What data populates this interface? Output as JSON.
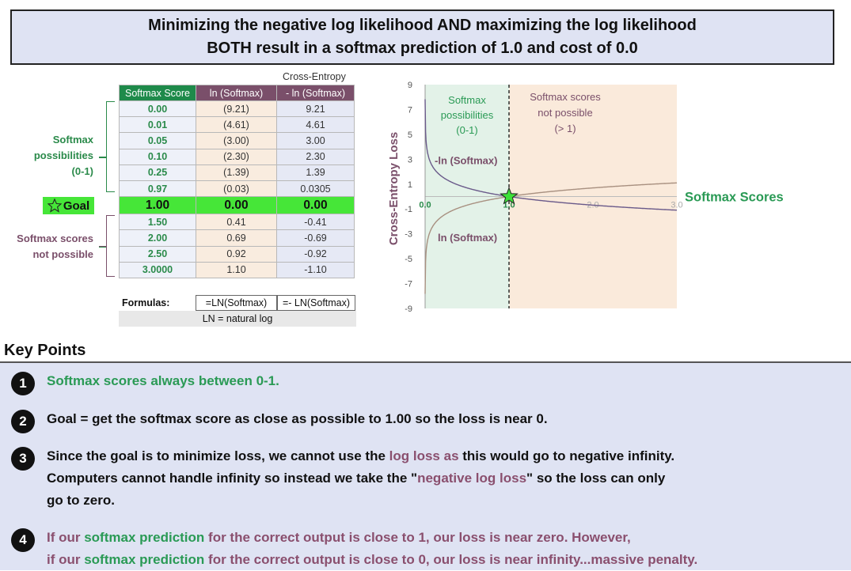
{
  "title": {
    "line1": "Minimizing the negative log likelihood AND maximizing the log likelihood",
    "line2": "BOTH result in a softmax prediction of 1.0 and cost of 0.0"
  },
  "table": {
    "cross_entropy_header": "Cross-Entropy",
    "headers": [
      "Softmax Score",
      "ln (Softmax)",
      "- ln (Softmax)"
    ],
    "rows": [
      [
        "0.00",
        "(9.21)",
        "9.21"
      ],
      [
        "0.01",
        "(4.61)",
        "4.61"
      ],
      [
        "0.05",
        "(3.00)",
        "3.00"
      ],
      [
        "0.10",
        "(2.30)",
        "2.30"
      ],
      [
        "0.25",
        "(1.39)",
        "1.39"
      ],
      [
        "0.97",
        "(0.03)",
        "0.0305"
      ],
      [
        "1.00",
        "0.00",
        "0.00"
      ],
      [
        "1.50",
        "0.41",
        "-0.41"
      ],
      [
        "2.00",
        "0.69",
        "-0.69"
      ],
      [
        "2.50",
        "0.92",
        "-0.92"
      ],
      [
        "3.0000",
        "1.10",
        "-1.10"
      ]
    ],
    "goal_row_index": 6
  },
  "side_labels": {
    "possible": [
      "Softmax",
      "possibilities",
      "(0-1)"
    ],
    "goal": "Goal",
    "not_possible": [
      "Softmax scores",
      "not possible"
    ]
  },
  "formulas": {
    "label": "Formulas:",
    "f1": "=LN(Softmax)",
    "f2": "=- LN(Softmax)",
    "note": "LN = natural log"
  },
  "chart_data": {
    "type": "line",
    "ylabel": "Cross-Entropy  Loss",
    "xlabel_right": "Softmax Scores",
    "x_ticks": [
      "0.0",
      "1.0",
      "2.0",
      "3.0"
    ],
    "y_ticks": [
      "9",
      "7",
      "5",
      "3",
      "1",
      "-1",
      "-3",
      "-5",
      "-7",
      "-9"
    ],
    "xlim": [
      0,
      3
    ],
    "ylim": [
      -9,
      9
    ],
    "series": [
      {
        "name": "-ln (Softmax)",
        "color": "#6a5a8a"
      },
      {
        "name": "ln (Softmax)",
        "color": "#a89080"
      }
    ],
    "region_left_label": [
      "Softmax",
      "possibilities",
      "(0-1)"
    ],
    "region_right_label": [
      "Softmax scores",
      "not possible",
      "(> 1)"
    ],
    "region_left_color": "#e3f2e8",
    "region_right_color": "#faeadb",
    "marker": {
      "x": 1.0,
      "y": 0.0
    }
  },
  "key_points": {
    "title": "Key Points",
    "items": [
      {
        "num": "1",
        "lines": [
          [
            {
              "t": "Softmax scores always between 0-1.",
              "c": "green"
            }
          ]
        ]
      },
      {
        "num": "2",
        "lines": [
          [
            {
              "t": "Goal = get the softmax score as close as possible to 1.00 so the loss is near 0.",
              "c": "dark"
            }
          ]
        ]
      },
      {
        "num": "3",
        "lines": [
          [
            {
              "t": "Since the goal is to minimize loss, we cannot use the ",
              "c": "dark"
            },
            {
              "t": "log loss as",
              "c": "purple"
            },
            {
              "t": " this would go to negative infinity.",
              "c": "dark"
            }
          ],
          [
            {
              "t": "Computers cannot handle infinity so instead we take the \"",
              "c": "dark"
            },
            {
              "t": "negative log loss",
              "c": "purple"
            },
            {
              "t": "\" so the loss can only",
              "c": "dark"
            }
          ],
          [
            {
              "t": "go to zero.",
              "c": "dark"
            }
          ]
        ]
      },
      {
        "num": "4",
        "lines": [
          [
            {
              "t": "If our ",
              "c": "purple"
            },
            {
              "t": "softmax prediction",
              "c": "green"
            },
            {
              "t": " for the correct output is close to 1, our loss is near zero.  However,",
              "c": "purple"
            }
          ],
          [
            {
              "t": "if our ",
              "c": "purple"
            },
            {
              "t": "softmax prediction",
              "c": "green"
            },
            {
              "t": " for the correct output is close to 0, our loss is near infinity...massive penalty.",
              "c": "purple"
            }
          ]
        ]
      }
    ]
  }
}
